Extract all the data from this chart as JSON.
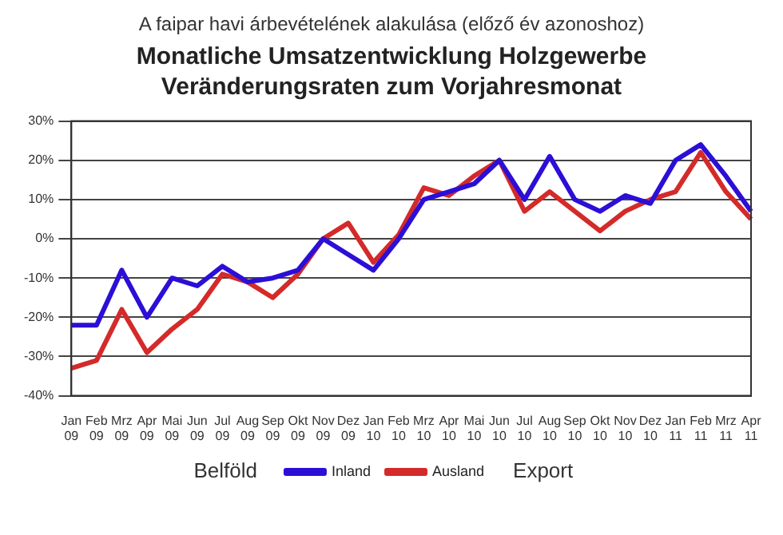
{
  "chart_data": {
    "type": "line",
    "subtitle": "A faipar havi árbevételének alakulása (előző év azonoshoz)",
    "title": "Monatliche Umsatzentwicklung Holzgewerbe\nVeränderungsraten zum Vorjahresmonat",
    "categories": [
      "Jan 09",
      "Feb 09",
      "Mrz 09",
      "Apr 09",
      "Mai 09",
      "Jun 09",
      "Jul 09",
      "Aug 09",
      "Sep 09",
      "Okt 09",
      "Nov 09",
      "Dez 09",
      "Jan 10",
      "Feb 10",
      "Mrz 10",
      "Apr 10",
      "Mai 10",
      "Jun 10",
      "Jul 10",
      "Aug 10",
      "Sep 10",
      "Okt 10",
      "Nov 10",
      "Dez 10",
      "Jan 11",
      "Feb 11",
      "Mrz 11",
      "Apr 11"
    ],
    "series": [
      {
        "name": "Inland",
        "color": "#2b0fd6",
        "values": [
          -22,
          -22,
          -8,
          -20,
          -10,
          -12,
          -7,
          -11,
          -10,
          -8,
          0,
          -4,
          -8,
          0,
          10,
          12,
          14,
          20,
          10,
          21,
          10,
          7,
          11,
          9,
          20,
          24,
          16,
          7
        ]
      },
      {
        "name": "Ausland",
        "color": "#d42a2a",
        "values": [
          -33,
          -31,
          -18,
          -29,
          -23,
          -18,
          -9,
          -11,
          -15,
          -9,
          0,
          4,
          -6,
          1,
          13,
          11,
          16,
          20,
          7,
          12,
          7,
          2,
          7,
          10,
          12,
          22,
          12,
          5
        ]
      }
    ],
    "ylim": [
      -40,
      30
    ],
    "yticks": [
      {
        "value": -40,
        "label": "-40%"
      },
      {
        "value": -30,
        "label": "-30%"
      },
      {
        "value": -20,
        "label": "-20%"
      },
      {
        "value": -10,
        "label": "-10%"
      },
      {
        "value": 0,
        "label": "0%"
      },
      {
        "value": 10,
        "label": "10%"
      },
      {
        "value": 20,
        "label": "20%"
      },
      {
        "value": 30,
        "label": "30%"
      }
    ],
    "grid": "y",
    "legend": "bottom",
    "marker": "none",
    "line_style": "solid",
    "annotations": [
      "Belföld",
      "Export"
    ]
  }
}
